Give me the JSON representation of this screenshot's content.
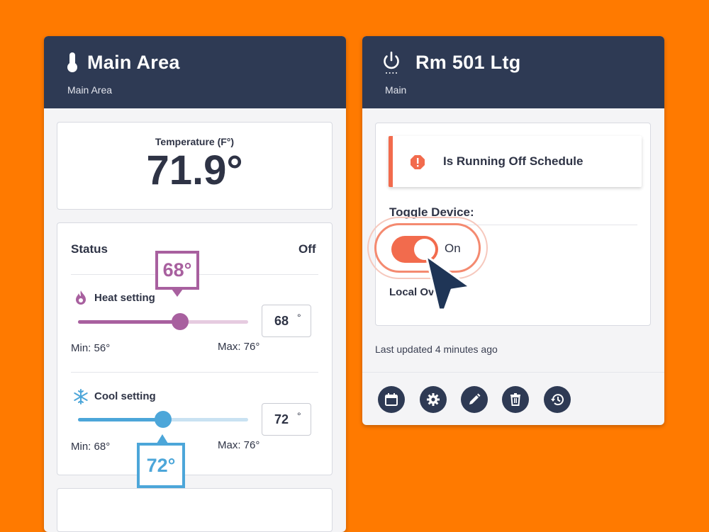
{
  "left_card": {
    "title": "Main Area",
    "subtitle": "Main Area",
    "temperature": {
      "label": "Temperature (F°)",
      "value": "71.9°"
    },
    "status": {
      "label": "Status",
      "value": "Off"
    },
    "heat": {
      "label": "Heat setting",
      "value": "68",
      "unit": "°",
      "callout": "68°",
      "min_label": "Min: 56°",
      "max_label": "Max: 76°",
      "min": 56,
      "max": 76,
      "current": 68,
      "color": "#A8609F"
    },
    "cool": {
      "label": "Cool setting",
      "value": "72",
      "unit": "°",
      "callout": "72°",
      "min_label": "Min: 68°",
      "max_label": "Max: 76°",
      "min": 68,
      "max": 76,
      "current": 72,
      "color": "#4CA6D9"
    }
  },
  "right_card": {
    "title": "Rm 501 Ltg",
    "subtitle": "Main",
    "alert": {
      "text": "Is Running Off Schedule",
      "icon": "error-icon",
      "color": "#F26B4D"
    },
    "toggle": {
      "label": "Toggle Device:",
      "state_text": "On",
      "on": true,
      "color": "#F26B4D"
    },
    "local_override_label": "Local Ov",
    "last_updated": "Last updated 4 minutes ago",
    "footer_icons": [
      "calendar-icon",
      "gear-icon",
      "pencil-icon",
      "trash-icon",
      "history-icon"
    ]
  },
  "colors": {
    "background": "#FF7A00",
    "header": "#2E3A54",
    "cursor": "#1F3556"
  }
}
